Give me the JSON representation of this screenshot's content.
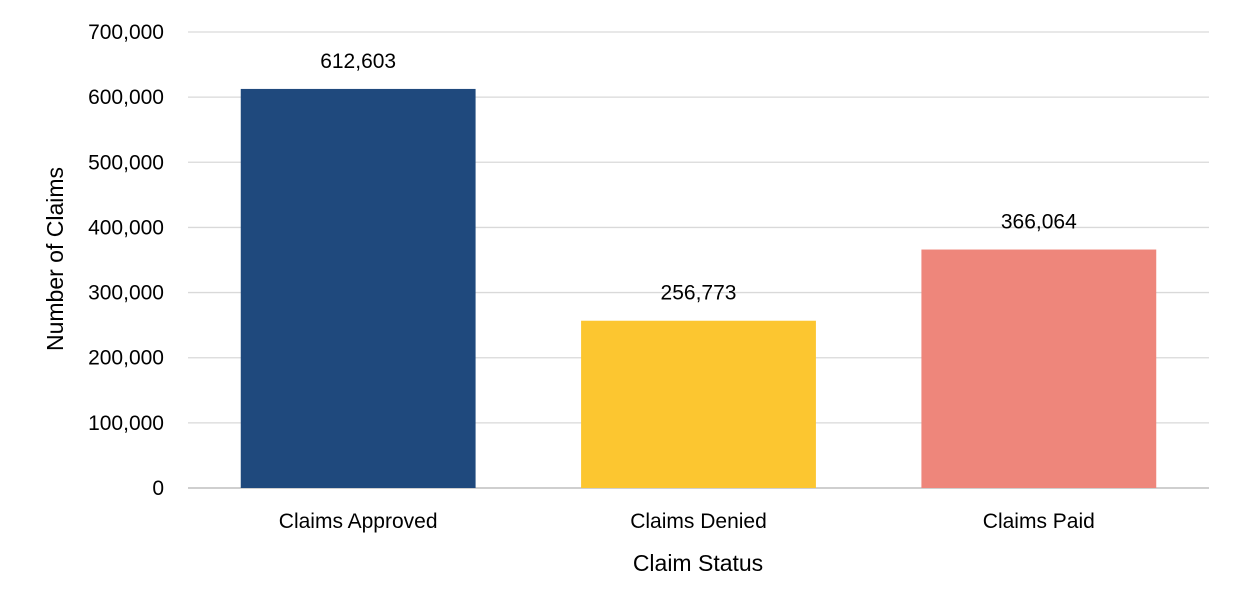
{
  "chart_data": {
    "type": "bar",
    "categories": [
      "Claims Approved",
      "Claims Denied",
      "Claims Paid"
    ],
    "values": [
      612603,
      256773,
      366064
    ],
    "value_labels": [
      "612,603",
      "256,773",
      "366,064"
    ],
    "colors": [
      "#1f497d",
      "#fcc630",
      "#ee867b"
    ],
    "title": "",
    "xlabel": "Claim Status",
    "ylabel": "Number of Claims",
    "ylim": [
      0,
      700000
    ],
    "yticks": [
      0,
      100000,
      200000,
      300000,
      400000,
      500000,
      600000,
      700000
    ],
    "ytick_labels": [
      "0",
      "100,000",
      "200,000",
      "300,000",
      "400,000",
      "500,000",
      "600,000",
      "700,000"
    ],
    "grid": true,
    "legend": "none"
  }
}
